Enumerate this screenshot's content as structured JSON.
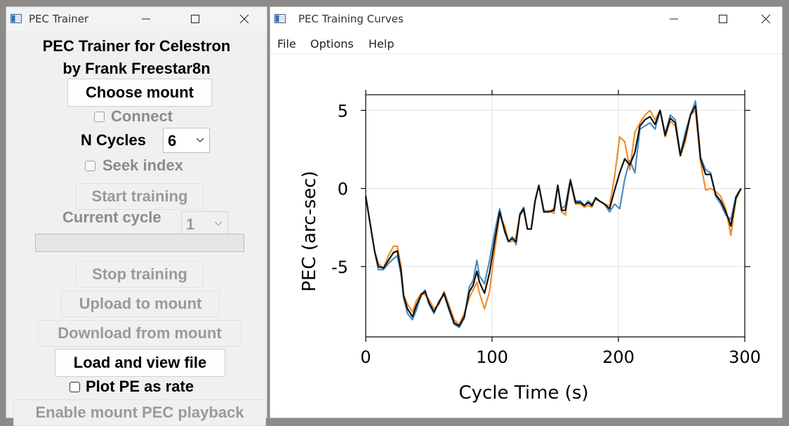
{
  "left_window": {
    "title": "PEC Trainer",
    "heading_line1": "PEC Trainer for Celestron",
    "heading_line2": "by Frank Freestar8n",
    "choose_mount": "Choose mount",
    "connect_label": "Connect",
    "n_cycles_label": "N Cycles",
    "n_cycles_value": "6",
    "seek_index_label": "Seek index",
    "start_training": "Start training",
    "current_cycle_label": "Current cycle",
    "current_cycle_value": "1",
    "progress_fraction": 0,
    "stop_training": "Stop training",
    "upload": "Upload to mount",
    "download": "Download from mount",
    "load_view": "Load and view file",
    "plot_rate_label": "Plot PE as rate",
    "enable_playback": "Enable mount PEC playback"
  },
  "right_window": {
    "title": "PEC Training Curves",
    "menu": [
      "File",
      "Options",
      "Help"
    ]
  },
  "chart_data": {
    "type": "line",
    "xlabel": "Cycle Time (s)",
    "ylabel": "PEC (arc-sec)",
    "xlim": [
      0,
      300
    ],
    "ylim": [
      -9.5,
      6
    ],
    "xticks": [
      0,
      100,
      200,
      300
    ],
    "yticks": [
      5,
      0,
      -5
    ],
    "grid": true,
    "colors": [
      "#4a8bc0",
      "#f28e2b",
      "#111111"
    ],
    "series": [
      {
        "x": [
          0,
          3,
          7,
          10,
          14,
          18,
          22,
          25,
          28,
          30,
          33,
          37,
          40,
          44,
          47,
          50,
          54,
          58,
          62,
          66,
          70,
          74,
          78,
          82,
          85,
          88,
          90,
          94,
          98,
          102,
          106,
          110,
          113,
          116,
          119,
          122,
          125,
          128,
          131,
          134,
          137,
          141,
          145,
          149,
          152,
          155,
          158,
          162,
          166,
          170,
          173,
          176,
          179,
          182,
          185,
          189,
          193,
          197,
          201,
          205,
          209,
          213,
          217,
          221,
          225,
          229,
          233,
          237,
          241,
          245,
          249,
          253,
          257,
          261,
          265,
          269,
          273,
          277,
          281,
          285,
          289,
          293,
          297
        ],
        "y": [
          -0.5,
          -2,
          -4,
          -5.2,
          -5.2,
          -4.8,
          -4.5,
          -4.3,
          -5.5,
          -7,
          -8,
          -8.4,
          -7.8,
          -6.8,
          -6.5,
          -7.4,
          -8,
          -7.2,
          -6.8,
          -7.8,
          -8.7,
          -8.9,
          -8.3,
          -6.3,
          -5.9,
          -4.6,
          -5.6,
          -6.1,
          -4.6,
          -2.8,
          -1.3,
          -2.8,
          -3.4,
          -3.1,
          -3.6,
          -1.6,
          -1.2,
          -2.6,
          -2.6,
          -0.8,
          0.2,
          -1.4,
          -1.5,
          -1.3,
          0.2,
          -1.3,
          -1.1,
          0.6,
          -0.8,
          -0.8,
          -1.1,
          -0.8,
          -1.0,
          -0.7,
          -0.8,
          -1.0,
          -1.5,
          -1.0,
          -1.3,
          0.6,
          1.8,
          1.0,
          3.8,
          4.0,
          4.2,
          3.8,
          5.0,
          3.5,
          4.7,
          4.4,
          2.2,
          3.6,
          4.7,
          5.6,
          2.0,
          1.2,
          1.0,
          -0.5,
          -1.0,
          -1.7,
          -2.0,
          -0.5,
          0.0
        ]
      },
      {
        "x": [
          0,
          3,
          7,
          10,
          14,
          18,
          22,
          25,
          28,
          30,
          33,
          37,
          40,
          44,
          47,
          50,
          54,
          58,
          62,
          66,
          70,
          74,
          78,
          82,
          85,
          88,
          90,
          94,
          98,
          102,
          106,
          110,
          113,
          116,
          119,
          122,
          125,
          128,
          131,
          134,
          137,
          141,
          145,
          149,
          152,
          155,
          158,
          162,
          166,
          170,
          173,
          176,
          179,
          182,
          185,
          189,
          193,
          197,
          201,
          205,
          209,
          213,
          217,
          221,
          225,
          229,
          233,
          237,
          241,
          245,
          249,
          253,
          257,
          261,
          265,
          269,
          273,
          277,
          281,
          285,
          289,
          293,
          297
        ],
        "y": [
          -0.5,
          -2,
          -4,
          -4.8,
          -5.1,
          -4.3,
          -3.7,
          -3.7,
          -5,
          -6.8,
          -7.4,
          -7.9,
          -7.2,
          -6.7,
          -6.8,
          -7.1,
          -7.7,
          -7.4,
          -6.6,
          -7.5,
          -8.4,
          -8.7,
          -8.0,
          -7.0,
          -6.5,
          -6.0,
          -6.7,
          -7.7,
          -6.6,
          -4.0,
          -1.7,
          -2.4,
          -3.4,
          -3.4,
          -3.1,
          -1.7,
          -1.4,
          -2.6,
          -2.6,
          -0.9,
          0.2,
          -1.5,
          -1.4,
          -1.6,
          0.2,
          -1.5,
          -1.7,
          0.5,
          -1.0,
          -1.0,
          -1.2,
          -1.1,
          -1.2,
          -0.6,
          -0.8,
          -1.0,
          -1.1,
          0.8,
          3.3,
          3.0,
          1.2,
          3.6,
          4.2,
          4.7,
          5.0,
          4.4,
          5.0,
          3.3,
          4.3,
          4.0,
          2.1,
          3.0,
          4.7,
          5.0,
          1.7,
          -0.1,
          0.0,
          -0.2,
          -0.5,
          -1.3,
          -3.0,
          -0.7,
          0.0
        ]
      },
      {
        "x": [
          0,
          3,
          7,
          10,
          14,
          18,
          22,
          25,
          28,
          30,
          33,
          37,
          40,
          44,
          47,
          50,
          54,
          58,
          62,
          66,
          70,
          74,
          78,
          82,
          85,
          88,
          90,
          94,
          98,
          102,
          106,
          110,
          113,
          116,
          119,
          122,
          125,
          128,
          131,
          134,
          137,
          141,
          145,
          149,
          152,
          155,
          158,
          162,
          166,
          170,
          173,
          176,
          179,
          182,
          185,
          189,
          193,
          197,
          201,
          205,
          209,
          213,
          217,
          221,
          225,
          229,
          233,
          237,
          241,
          245,
          249,
          253,
          257,
          261,
          265,
          269,
          273,
          277,
          281,
          285,
          289,
          293,
          297
        ],
        "y": [
          -0.5,
          -2,
          -4,
          -5,
          -5.1,
          -4.6,
          -4.1,
          -4,
          -5.3,
          -6.9,
          -7.7,
          -8.2,
          -7.5,
          -6.8,
          -6.6,
          -7.3,
          -7.9,
          -7.3,
          -6.7,
          -7.7,
          -8.6,
          -8.8,
          -8.2,
          -6.6,
          -6.2,
          -5.3,
          -6.0,
          -6.7,
          -5.4,
          -3.4,
          -1.5,
          -2.7,
          -3.4,
          -3.2,
          -3.4,
          -1.7,
          -1.3,
          -2.6,
          -2.6,
          -0.8,
          0.2,
          -1.5,
          -1.5,
          -1.4,
          0.2,
          -1.4,
          -1.4,
          0.5,
          -0.9,
          -0.9,
          -1.1,
          -0.9,
          -1.1,
          -0.6,
          -0.8,
          -1.0,
          -1.3,
          -0.1,
          1.0,
          1.9,
          1.5,
          2.3,
          4.0,
          4.4,
          4.6,
          4.1,
          5.0,
          3.4,
          4.5,
          4.2,
          2.1,
          3.3,
          4.7,
          5.3,
          1.9,
          0.9,
          0.9,
          -0.4,
          -0.8,
          -1.5,
          -2.4,
          -0.6,
          0.0
        ]
      }
    ]
  }
}
